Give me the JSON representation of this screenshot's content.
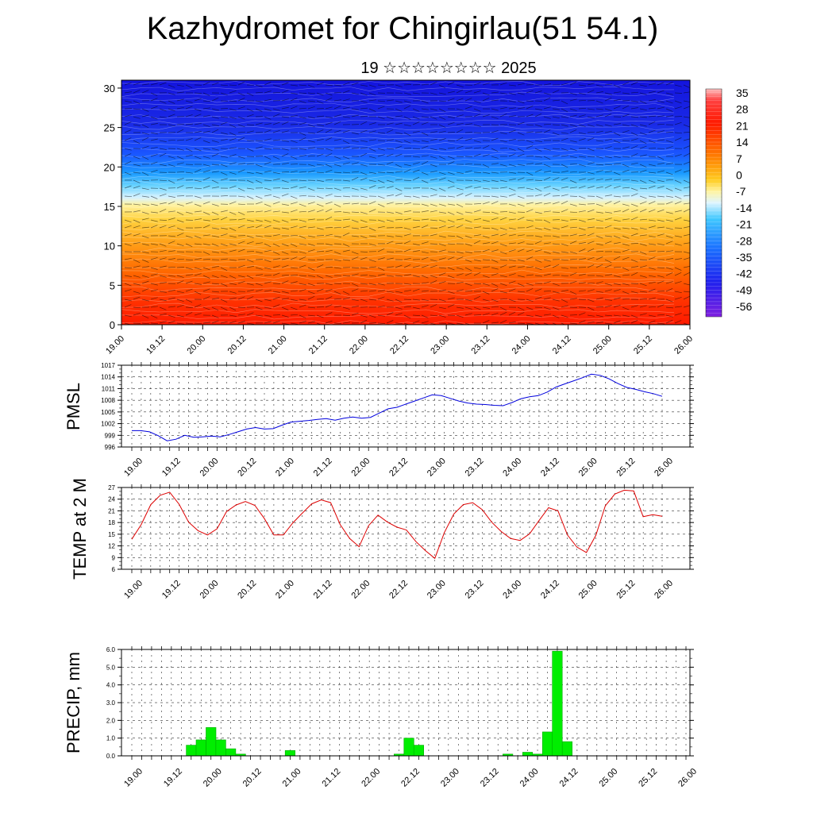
{
  "title": "Kazhydromet for Chingirlau(51 54.1)",
  "subtitle": "19 ☆☆☆☆☆☆☆☆ 2025",
  "colors": {
    "pmsl_line": "#0000dd",
    "temp_line": "#dd0000",
    "precip_bar": "#00ee00",
    "precip_bar_edge": "#00aa00",
    "frame": "#000000",
    "grid": "#000000"
  },
  "chart_data": [
    {
      "type": "heatmap",
      "id": "cross-section",
      "title": "",
      "xlabel": "",
      "ylabel": "",
      "x_ticks": [
        "19.00",
        "19.12",
        "20.00",
        "20.12",
        "21.00",
        "21.12",
        "22.00",
        "22.12",
        "23.00",
        "23.12",
        "24.00",
        "24.12",
        "25.00",
        "25.12",
        "26.00"
      ],
      "y_ticks": [
        0,
        5,
        10,
        15,
        20,
        25,
        30
      ],
      "ylim": [
        0,
        31
      ],
      "colorbar_labels": [
        35,
        28,
        21,
        14,
        7,
        0,
        -7,
        -14,
        -21,
        -28,
        -35,
        -42,
        -49,
        -56
      ],
      "colorbar_range": [
        -63,
        42
      ],
      "notes": "temperature cross-section with wind barbs; blue aloft, red near surface"
    },
    {
      "type": "line",
      "id": "pmsl",
      "ylabel": "PMSL",
      "x_ticks": [
        "19.00",
        "19.12",
        "20.00",
        "20.12",
        "21.00",
        "21.12",
        "22.00",
        "22.12",
        "23.00",
        "23.12",
        "24.00",
        "24.12",
        "25.00",
        "25.12",
        "26.00"
      ],
      "y_ticks": [
        996,
        999,
        1002,
        1005,
        1008,
        1011,
        1014,
        1017
      ],
      "ylim": [
        996,
        1017
      ],
      "grid": true,
      "series": [
        {
          "values": [
            1000.2,
            1000.2,
            999.9,
            998.9,
            997.6,
            998.0,
            999.0,
            998.5,
            998.6,
            998.8,
            998.6,
            999.2,
            999.9,
            1000.6,
            1001.0,
            1000.6,
            1000.7,
            1001.6,
            1002.4,
            1002.6,
            1002.8,
            1003.1,
            1003.3,
            1002.9,
            1003.4,
            1003.7,
            1003.4,
            1003.6,
            1004.7,
            1005.8,
            1006.2,
            1007.0,
            1007.8,
            1008.6,
            1009.4,
            1009.2,
            1008.5,
            1007.8,
            1007.3,
            1007.0,
            1006.9,
            1006.7,
            1006.6,
            1007.4,
            1008.4,
            1008.9,
            1009.2,
            1010.1,
            1011.4,
            1012.2,
            1013.0,
            1013.8,
            1014.7,
            1014.4,
            1013.5,
            1012.3,
            1011.3,
            1010.8,
            1010.2,
            1009.7,
            1009.0
          ]
        }
      ]
    },
    {
      "type": "line",
      "id": "temp",
      "ylabel": "TEMP at 2 M",
      "x_ticks": [
        "19.00",
        "19.12",
        "20.00",
        "20.12",
        "21.00",
        "21.12",
        "22.00",
        "22.12",
        "23.00",
        "23.12",
        "24.00",
        "24.12",
        "25.00",
        "25.12",
        "26.00"
      ],
      "y_ticks": [
        6,
        9,
        12,
        15,
        18,
        21,
        24,
        27
      ],
      "ylim": [
        6,
        27
      ],
      "grid": true,
      "series": [
        {
          "values": [
            13.7,
            17.5,
            22.6,
            25.0,
            25.8,
            22.7,
            18.1,
            15.9,
            14.8,
            16.4,
            20.8,
            22.5,
            23.4,
            22.4,
            19.0,
            14.8,
            14.8,
            17.9,
            20.4,
            22.8,
            23.8,
            23.1,
            17.5,
            13.9,
            11.8,
            17.2,
            19.9,
            18.1,
            16.8,
            16.1,
            13.1,
            10.8,
            8.8,
            15.4,
            20.2,
            22.6,
            23.1,
            21.3,
            18.1,
            15.7,
            13.9,
            13.4,
            15.1,
            18.5,
            21.8,
            21.0,
            14.8,
            11.7,
            10.3,
            14.7,
            22.3,
            25.3,
            26.3,
            26.1,
            19.5,
            20.0,
            19.6
          ]
        }
      ]
    },
    {
      "type": "bar",
      "id": "precip",
      "ylabel": "PRECIP, mm",
      "x_ticks": [
        "19.00",
        "19.12",
        "20.00",
        "20.12",
        "21.00",
        "21.12",
        "22.00",
        "22.12",
        "23.00",
        "23.12",
        "24.00",
        "24.12",
        "25.00",
        "25.12",
        "26.00"
      ],
      "y_ticks": [
        "0.0",
        "1.0",
        "2.0",
        "3.0",
        "4.0",
        "5.0",
        "6.0"
      ],
      "ylim": [
        0,
        6
      ],
      "grid": true,
      "values": [
        0,
        0,
        0,
        0,
        0,
        0,
        0.6,
        0.9,
        1.6,
        0.9,
        0.4,
        0.1,
        0,
        0,
        0,
        0,
        0.3,
        0,
        0,
        0,
        0,
        0,
        0,
        0,
        0,
        0,
        0,
        0.1,
        1.0,
        0.6,
        0,
        0,
        0,
        0,
        0,
        0,
        0,
        0,
        0.1,
        0,
        0.2,
        0.1,
        1.35,
        5.9,
        0.8,
        0,
        0,
        0,
        0,
        0,
        0,
        0,
        0,
        0,
        0,
        0,
        0
      ]
    }
  ]
}
